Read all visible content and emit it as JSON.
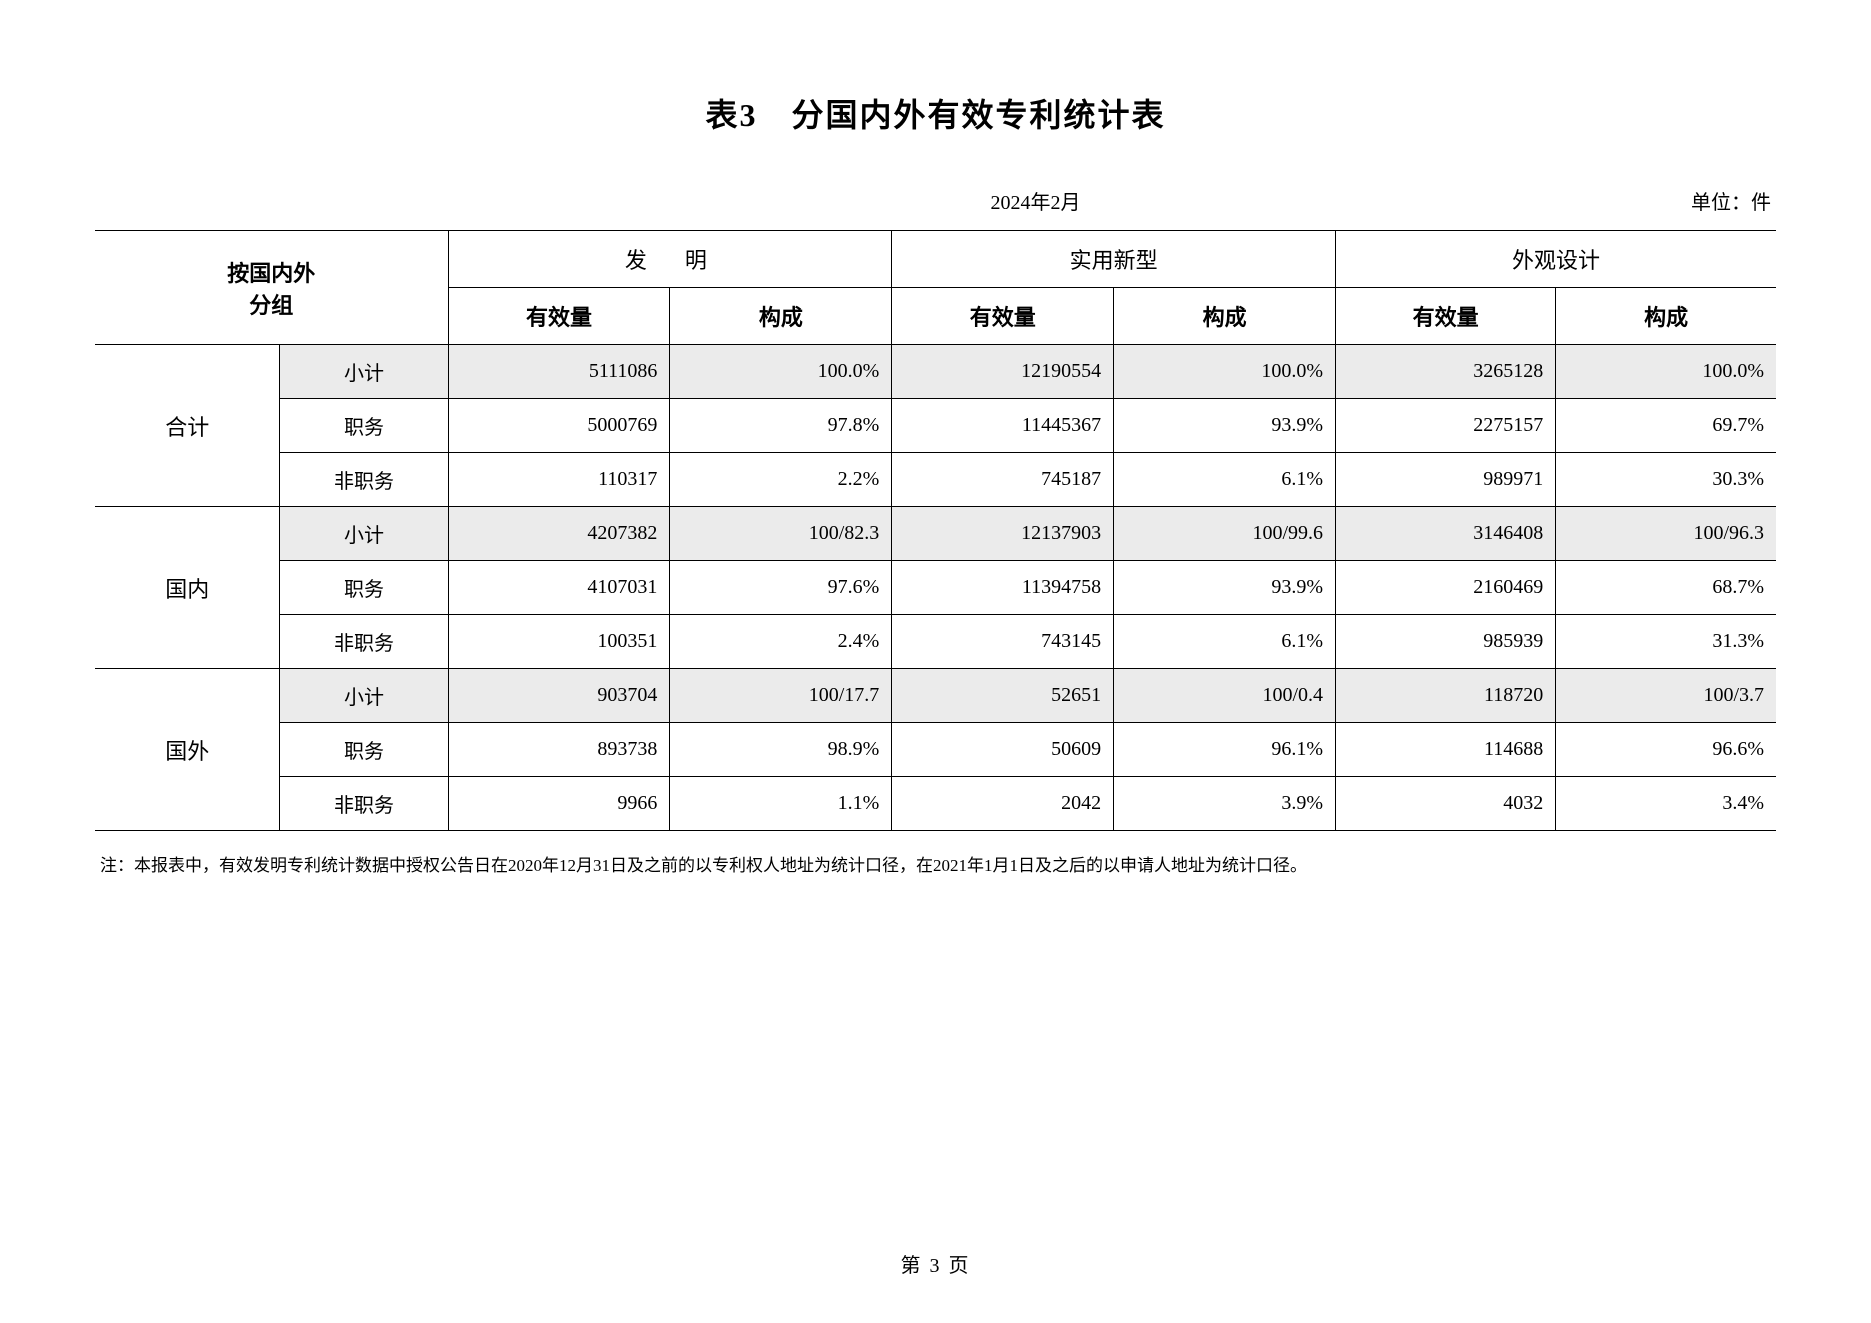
{
  "title": "表3　分国内外有效专利统计表",
  "date": "2024年2月",
  "unit": "单位：件",
  "headers": {
    "group": "按国内外\n分组",
    "cat1": "发　明",
    "cat2": "实用新型",
    "cat3": "外观设计",
    "sub1": "有效量",
    "sub2": "构成"
  },
  "groups": [
    {
      "label": "合计",
      "rows": [
        {
          "label": "小计",
          "shaded": true,
          "c1v": "5111086",
          "c1p": "100.0%",
          "c2v": "12190554",
          "c2p": "100.0%",
          "c3v": "3265128",
          "c3p": "100.0%"
        },
        {
          "label": "职务",
          "shaded": false,
          "c1v": "5000769",
          "c1p": "97.8%",
          "c2v": "11445367",
          "c2p": "93.9%",
          "c3v": "2275157",
          "c3p": "69.7%"
        },
        {
          "label": "非职务",
          "shaded": false,
          "c1v": "110317",
          "c1p": "2.2%",
          "c2v": "745187",
          "c2p": "6.1%",
          "c3v": "989971",
          "c3p": "30.3%"
        }
      ]
    },
    {
      "label": "国内",
      "rows": [
        {
          "label": "小计",
          "shaded": true,
          "c1v": "4207382",
          "c1p": "100/82.3",
          "c2v": "12137903",
          "c2p": "100/99.6",
          "c3v": "3146408",
          "c3p": "100/96.3"
        },
        {
          "label": "职务",
          "shaded": false,
          "c1v": "4107031",
          "c1p": "97.6%",
          "c2v": "11394758",
          "c2p": "93.9%",
          "c3v": "2160469",
          "c3p": "68.7%"
        },
        {
          "label": "非职务",
          "shaded": false,
          "c1v": "100351",
          "c1p": "2.4%",
          "c2v": "743145",
          "c2p": "6.1%",
          "c3v": "985939",
          "c3p": "31.3%"
        }
      ]
    },
    {
      "label": "国外",
      "rows": [
        {
          "label": "小计",
          "shaded": true,
          "c1v": "903704",
          "c1p": "100/17.7",
          "c2v": "52651",
          "c2p": "100/0.4",
          "c3v": "118720",
          "c3p": "100/3.7"
        },
        {
          "label": "职务",
          "shaded": false,
          "c1v": "893738",
          "c1p": "98.9%",
          "c2v": "50609",
          "c2p": "96.1%",
          "c3v": "114688",
          "c3p": "96.6%"
        },
        {
          "label": "非职务",
          "shaded": false,
          "c1v": "9966",
          "c1p": "1.1%",
          "c2v": "2042",
          "c2p": "3.9%",
          "c3v": "4032",
          "c3p": "3.4%"
        }
      ]
    }
  ],
  "note": "注：本报表中，有效发明专利统计数据中授权公告日在2020年12月31日及之前的以专利权人地址为统计口径，在2021年1月1日及之后的以申请人地址为统计口径。",
  "page": "第 3 页"
}
